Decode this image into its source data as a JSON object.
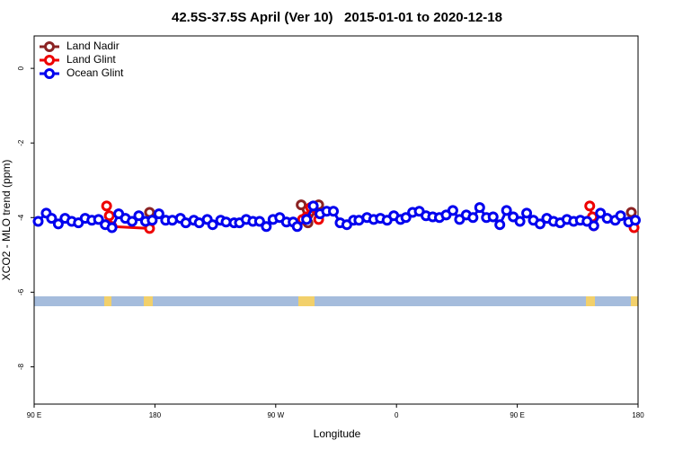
{
  "chart_data": {
    "type": "line",
    "title": "42.5S-37.5S April (Ver 10)   2015-01-01 to 2020-12-18",
    "xlabel": "Longitude",
    "ylabel": "XCO2 - MLO trend (ppm)",
    "xlim": [
      90,
      540
    ],
    "ylim": [
      -9.0,
      0.87
    ],
    "xticks": [
      {
        "value": 90,
        "label": "90 E"
      },
      {
        "value": 180,
        "label": "180"
      },
      {
        "value": 270,
        "label": "90 W"
      },
      {
        "value": 360,
        "label": "0"
      },
      {
        "value": 450,
        "label": "90 E"
      },
      {
        "value": 540,
        "label": "180"
      }
    ],
    "yticks": [
      0,
      -2,
      -4,
      -6,
      -8
    ],
    "legend_position": "top-left",
    "series": [
      {
        "name": "Land Nadir",
        "color": "#8b2323",
        "x": [
          176,
          null,
          289,
          294,
          302,
          null,
          535
        ],
        "values": [
          -3.86,
          null,
          -3.66,
          -4.14,
          -3.66,
          null,
          -3.86
        ]
      },
      {
        "name": "Land Glint",
        "color": "#ee0000",
        "x": [
          144,
          146,
          148,
          176,
          null,
          290,
          293,
          296,
          302,
          null,
          504,
          506,
          507,
          null,
          537
        ],
        "values": [
          -3.69,
          -3.95,
          -4.24,
          -4.29,
          null,
          -4.05,
          -3.98,
          -3.73,
          -4.05,
          null,
          -3.69,
          -3.98,
          -4.22,
          null,
          -4.27
        ]
      },
      {
        "name": "Ocean Glint",
        "color": "#0000ee",
        "x": [
          93,
          99,
          103,
          108,
          113,
          118,
          123,
          128,
          133,
          138,
          143,
          148,
          153,
          158,
          163,
          168,
          173,
          178,
          183,
          188,
          193,
          199,
          203,
          209,
          213,
          219,
          223,
          229,
          233,
          239,
          243,
          248,
          253,
          258,
          263,
          268,
          273,
          278,
          283,
          286,
          293,
          298,
          303,
          308,
          313,
          318,
          323,
          328,
          332,
          338,
          343,
          348,
          353,
          358,
          363,
          367,
          372,
          377,
          382,
          387,
          392,
          397,
          402,
          407,
          412,
          417,
          422,
          427,
          432,
          437,
          442,
          447,
          452,
          457,
          462,
          467,
          472,
          477,
          482,
          487,
          492,
          497,
          502,
          507,
          512,
          517,
          523,
          527,
          533,
          538
        ],
        "values": [
          -4.1,
          -3.88,
          -4.02,
          -4.17,
          -4.02,
          -4.1,
          -4.14,
          -4.02,
          -4.07,
          -4.05,
          -4.19,
          -4.27,
          -3.9,
          -4.02,
          -4.1,
          -3.95,
          -4.1,
          -4.07,
          -3.9,
          -4.07,
          -4.07,
          -4.02,
          -4.14,
          -4.07,
          -4.14,
          -4.05,
          -4.19,
          -4.07,
          -4.12,
          -4.14,
          -4.14,
          -4.05,
          -4.1,
          -4.1,
          -4.24,
          -4.05,
          -4.0,
          -4.12,
          -4.12,
          -4.24,
          -4.05,
          -3.69,
          -3.9,
          -3.83,
          -3.83,
          -4.14,
          -4.19,
          -4.07,
          -4.07,
          -4.0,
          -4.05,
          -4.02,
          -4.07,
          -3.95,
          -4.05,
          -4.0,
          -3.86,
          -3.83,
          -3.95,
          -3.98,
          -4.0,
          -3.93,
          -3.81,
          -4.05,
          -3.93,
          -4.0,
          -3.73,
          -4.0,
          -3.98,
          -4.19,
          -3.81,
          -3.98,
          -4.1,
          -3.88,
          -4.07,
          -4.17,
          -4.02,
          -4.1,
          -4.14,
          -4.05,
          -4.1,
          -4.07,
          -4.1,
          -4.22,
          -3.88,
          -4.02,
          -4.07,
          -3.95,
          -4.12,
          -4.07
        ]
      }
    ]
  }
}
